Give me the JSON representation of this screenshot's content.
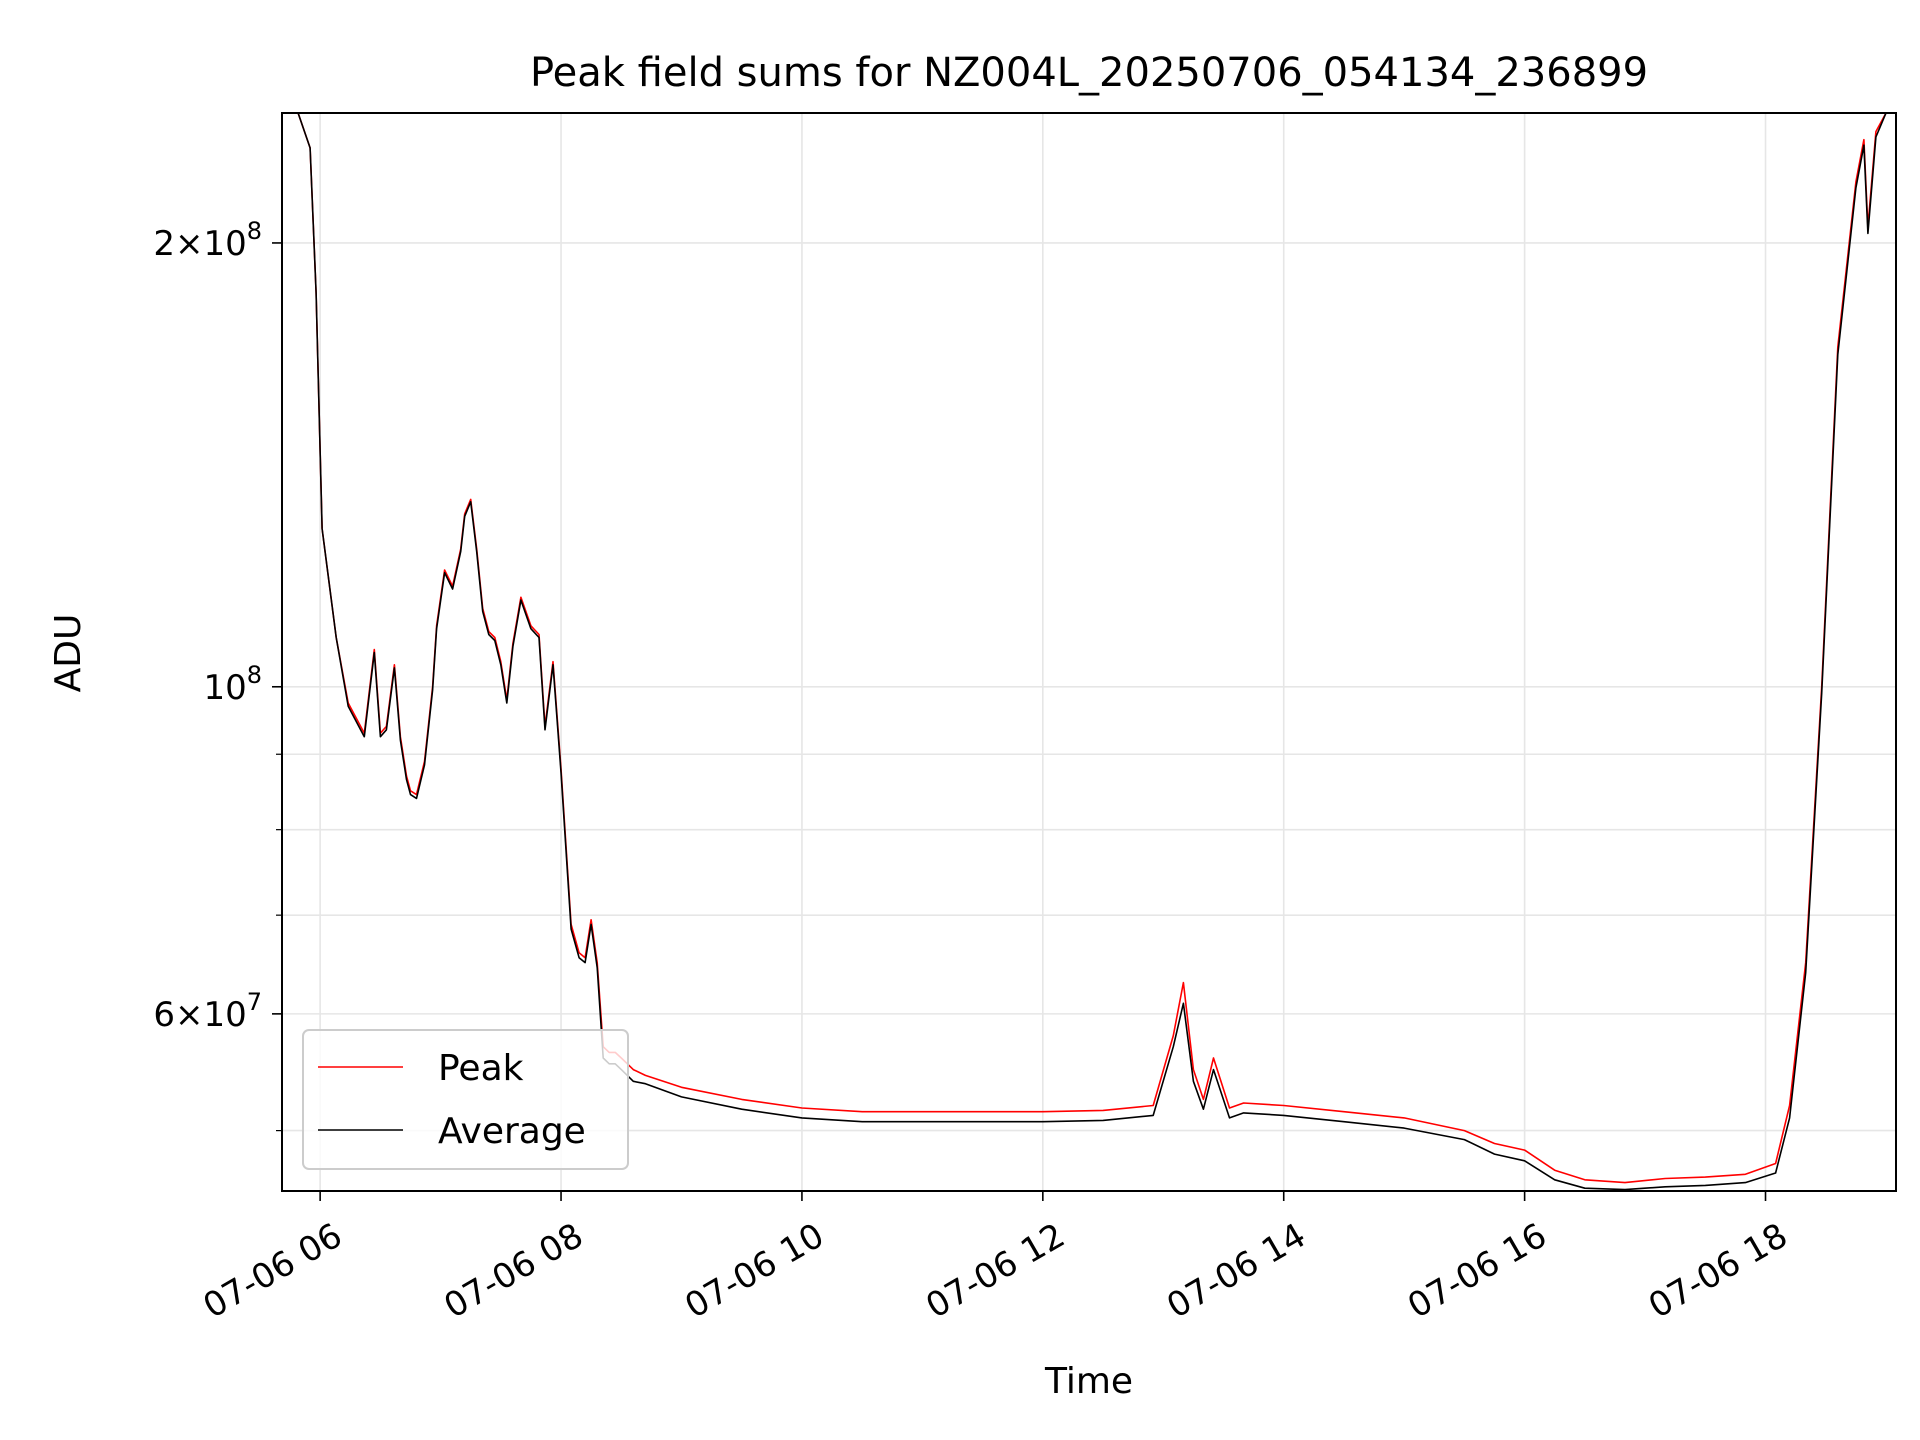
{
  "chart_data": {
    "type": "line",
    "title": "Peak field sums for NZ004L_20250706_054134_236899",
    "xlabel": "Time",
    "ylabel": "ADU",
    "x_scale": "time",
    "y_scale": "log",
    "xlim": [
      "2025-07-06T05:41",
      "2025-07-06T19:05"
    ],
    "ylim": [
      45500000,
      245000000
    ],
    "grid": true,
    "legend_position": "lower left",
    "x_ticks": [
      {
        "value": "2025-07-06T06:00",
        "label": "07-06 06"
      },
      {
        "value": "2025-07-06T08:00",
        "label": "07-06 08"
      },
      {
        "value": "2025-07-06T10:00",
        "label": "07-06 10"
      },
      {
        "value": "2025-07-06T12:00",
        "label": "07-06 12"
      },
      {
        "value": "2025-07-06T14:00",
        "label": "07-06 14"
      },
      {
        "value": "2025-07-06T16:00",
        "label": "07-06 16"
      },
      {
        "value": "2025-07-06T18:00",
        "label": "07-06 18"
      }
    ],
    "y_major_ticks": [
      {
        "value": 60000000,
        "mant": "6",
        "exp": "7"
      },
      {
        "value": 100000000,
        "mant": "",
        "exp": "8"
      },
      {
        "value": 200000000,
        "mant": "2",
        "exp": "8"
      }
    ],
    "y_minor_ticks": [
      50000000,
      70000000,
      80000000,
      90000000
    ],
    "series": [
      {
        "name": "Peak",
        "color": "#ff0000",
        "x": [
          "2025-07-06T05:41",
          "2025-07-06T05:49",
          "2025-07-06T05:55",
          "2025-07-06T05:58",
          "2025-07-06T06:01",
          "2025-07-06T06:08",
          "2025-07-06T06:14",
          "2025-07-06T06:22",
          "2025-07-06T06:27",
          "2025-07-06T06:30",
          "2025-07-06T06:33",
          "2025-07-06T06:37",
          "2025-07-06T06:40",
          "2025-07-06T06:43",
          "2025-07-06T06:45",
          "2025-07-06T06:48",
          "2025-07-06T06:52",
          "2025-07-06T06:56",
          "2025-07-06T06:58",
          "2025-07-06T07:02",
          "2025-07-06T07:06",
          "2025-07-06T07:10",
          "2025-07-06T07:12",
          "2025-07-06T07:15",
          "2025-07-06T07:18",
          "2025-07-06T07:21",
          "2025-07-06T07:24",
          "2025-07-06T07:27",
          "2025-07-06T07:30",
          "2025-07-06T07:33",
          "2025-07-06T07:36",
          "2025-07-06T07:40",
          "2025-07-06T07:45",
          "2025-07-06T07:49",
          "2025-07-06T07:52",
          "2025-07-06T07:56",
          "2025-07-06T08:00",
          "2025-07-06T08:05",
          "2025-07-06T08:09",
          "2025-07-06T08:12",
          "2025-07-06T08:15",
          "2025-07-06T08:18",
          "2025-07-06T08:21",
          "2025-07-06T08:24",
          "2025-07-06T08:27",
          "2025-07-06T08:30",
          "2025-07-06T08:33",
          "2025-07-06T08:36",
          "2025-07-06T08:42",
          "2025-07-06T09:00",
          "2025-07-06T09:30",
          "2025-07-06T10:00",
          "2025-07-06T10:30",
          "2025-07-06T11:00",
          "2025-07-06T11:30",
          "2025-07-06T12:00",
          "2025-07-06T12:30",
          "2025-07-06T12:55",
          "2025-07-06T13:05",
          "2025-07-06T13:10",
          "2025-07-06T13:15",
          "2025-07-06T13:20",
          "2025-07-06T13:25",
          "2025-07-06T13:33",
          "2025-07-06T13:40",
          "2025-07-06T14:00",
          "2025-07-06T14:30",
          "2025-07-06T15:00",
          "2025-07-06T15:30",
          "2025-07-06T15:45",
          "2025-07-06T16:00",
          "2025-07-06T16:15",
          "2025-07-06T16:30",
          "2025-07-06T16:50",
          "2025-07-06T17:10",
          "2025-07-06T17:30",
          "2025-07-06T17:50",
          "2025-07-06T18:05",
          "2025-07-06T18:12",
          "2025-07-06T18:20",
          "2025-07-06T18:28",
          "2025-07-06T18:36",
          "2025-07-06T18:45",
          "2025-07-06T18:49",
          "2025-07-06T18:51",
          "2025-07-06T18:55",
          "2025-07-06T19:00",
          "2025-07-06T19:05"
        ],
        "y": [
          245000000,
          245000000,
          232000000,
          185000000,
          128000000,
          108000000,
          97500000,
          93000000,
          106000000,
          93000000,
          94000000,
          103500000,
          92500000,
          87000000,
          85000000,
          84500000,
          89000000,
          100000000,
          110000000,
          120000000,
          117000000,
          124000000,
          131000000,
          134000000,
          124000000,
          113000000,
          109000000,
          108000000,
          104000000,
          98000000,
          107000000,
          115000000,
          110000000,
          108500000,
          94000000,
          104000000,
          88000000,
          69000000,
          66000000,
          65500000,
          69500000,
          65000000,
          57000000,
          56500000,
          56500000,
          56000000,
          55500000,
          55000000,
          54500000,
          53500000,
          52500000,
          51800000,
          51500000,
          51500000,
          51500000,
          51500000,
          51600000,
          52000000,
          58000000,
          63000000,
          55000000,
          52500000,
          56000000,
          51800000,
          52200000,
          52000000,
          51500000,
          51000000,
          50000000,
          49000000,
          48500000,
          47000000,
          46300000,
          46100000,
          46400000,
          46500000,
          46700000,
          47500000,
          52000000,
          65000000,
          100000000,
          170000000,
          220000000,
          235000000,
          205000000,
          238000000,
          245000000,
          245000000
        ]
      },
      {
        "name": "Average",
        "color": "#000000",
        "x": [
          "2025-07-06T05:41",
          "2025-07-06T05:49",
          "2025-07-06T05:55",
          "2025-07-06T05:58",
          "2025-07-06T06:01",
          "2025-07-06T06:08",
          "2025-07-06T06:14",
          "2025-07-06T06:22",
          "2025-07-06T06:27",
          "2025-07-06T06:30",
          "2025-07-06T06:33",
          "2025-07-06T06:37",
          "2025-07-06T06:40",
          "2025-07-06T06:43",
          "2025-07-06T06:45",
          "2025-07-06T06:48",
          "2025-07-06T06:52",
          "2025-07-06T06:56",
          "2025-07-06T06:58",
          "2025-07-06T07:02",
          "2025-07-06T07:06",
          "2025-07-06T07:10",
          "2025-07-06T07:12",
          "2025-07-06T07:15",
          "2025-07-06T07:18",
          "2025-07-06T07:21",
          "2025-07-06T07:24",
          "2025-07-06T07:27",
          "2025-07-06T07:30",
          "2025-07-06T07:33",
          "2025-07-06T07:36",
          "2025-07-06T07:40",
          "2025-07-06T07:45",
          "2025-07-06T07:49",
          "2025-07-06T07:52",
          "2025-07-06T07:56",
          "2025-07-06T08:00",
          "2025-07-06T08:05",
          "2025-07-06T08:09",
          "2025-07-06T08:12",
          "2025-07-06T08:15",
          "2025-07-06T08:18",
          "2025-07-06T08:21",
          "2025-07-06T08:24",
          "2025-07-06T08:27",
          "2025-07-06T08:30",
          "2025-07-06T08:33",
          "2025-07-06T08:36",
          "2025-07-06T08:42",
          "2025-07-06T09:00",
          "2025-07-06T09:30",
          "2025-07-06T10:00",
          "2025-07-06T10:30",
          "2025-07-06T11:00",
          "2025-07-06T11:30",
          "2025-07-06T12:00",
          "2025-07-06T12:30",
          "2025-07-06T12:55",
          "2025-07-06T13:05",
          "2025-07-06T13:10",
          "2025-07-06T13:15",
          "2025-07-06T13:20",
          "2025-07-06T13:25",
          "2025-07-06T13:33",
          "2025-07-06T13:40",
          "2025-07-06T14:00",
          "2025-07-06T14:30",
          "2025-07-06T15:00",
          "2025-07-06T15:30",
          "2025-07-06T15:45",
          "2025-07-06T16:00",
          "2025-07-06T16:15",
          "2025-07-06T16:30",
          "2025-07-06T16:50",
          "2025-07-06T17:10",
          "2025-07-06T17:30",
          "2025-07-06T17:50",
          "2025-07-06T18:05",
          "2025-07-06T18:12",
          "2025-07-06T18:20",
          "2025-07-06T18:28",
          "2025-07-06T18:36",
          "2025-07-06T18:45",
          "2025-07-06T18:49",
          "2025-07-06T18:51",
          "2025-07-06T18:55",
          "2025-07-06T19:00",
          "2025-07-06T19:05"
        ],
        "y": [
          245000000,
          245000000,
          232000000,
          185000000,
          128000000,
          108000000,
          97000000,
          92500000,
          105500000,
          92500000,
          93500000,
          103000000,
          92000000,
          86500000,
          84500000,
          84000000,
          88500000,
          99500000,
          109500000,
          119500000,
          116500000,
          123500000,
          130500000,
          133500000,
          123500000,
          112500000,
          108500000,
          107500000,
          103500000,
          97500000,
          106500000,
          114500000,
          109500000,
          108000000,
          93500000,
          103500000,
          87500000,
          68500000,
          65500000,
          65000000,
          69000000,
          64500000,
          56000000,
          55500000,
          55500000,
          55000000,
          54500000,
          54000000,
          53800000,
          52700000,
          51700000,
          51000000,
          50700000,
          50700000,
          50700000,
          50700000,
          50800000,
          51200000,
          57000000,
          61000000,
          54000000,
          51700000,
          55000000,
          51000000,
          51400000,
          51200000,
          50700000,
          50200000,
          49300000,
          48200000,
          47700000,
          46300000,
          45700000,
          45600000,
          45800000,
          45900000,
          46100000,
          46800000,
          51000000,
          64000000,
          99000000,
          168000000,
          218000000,
          233000000,
          203000000,
          236000000,
          245000000,
          245000000
        ]
      }
    ]
  }
}
